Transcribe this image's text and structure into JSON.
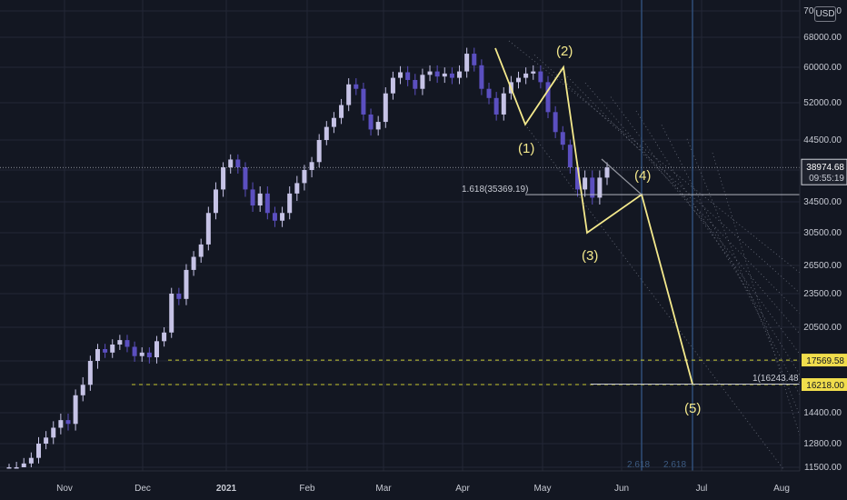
{
  "currency_badge": "USD",
  "chart_data": {
    "type": "candlestick",
    "theme": {
      "background": "#131722",
      "grid": "#232736",
      "candle": "#c6c3e6",
      "candle_dark": "#5b4fc0",
      "wave_line": "#f4e98c",
      "support_line": "#c8c830",
      "fib_time_line": "#2f4f78"
    },
    "y_axis": {
      "scale": "log",
      "ticks": [
        "70000.00",
        "68000.00",
        "60000.00",
        "52000.00",
        "44500.00",
        "38500.00",
        "34500.00",
        "30500.00",
        "26500.00",
        "23500.00",
        "20500.00",
        "17500.00",
        "16218.00",
        "14400.00",
        "12800.00",
        "11500.00"
      ],
      "range": [
        11000,
        72000
      ]
    },
    "x_axis": {
      "ticks": [
        "Nov",
        "Dec",
        "2021",
        "Feb",
        "Mar",
        "Apr",
        "May",
        "Jun",
        "Jul",
        "Aug"
      ],
      "bold_ticks": [
        "2021"
      ]
    },
    "price_close": [
      11400,
      11500,
      11700,
      12000,
      12800,
      13100,
      13600,
      14000,
      13800,
      15500,
      16200,
      17500,
      18500,
      18200,
      18900,
      19300,
      18700,
      17900,
      18200,
      17800,
      19200,
      20000,
      23500,
      23000,
      26000,
      27500,
      29000,
      33000,
      36000,
      39000,
      40500,
      39000,
      36000,
      34000,
      35500,
      33000,
      32000,
      33000,
      35500,
      36800,
      38500,
      40000,
      44500,
      47000,
      48800,
      51500,
      56000,
      55000,
      49500,
      46500,
      48000,
      54000,
      57500,
      58800,
      57000,
      55000,
      58200,
      59000,
      57800,
      58500,
      57500,
      59000,
      63500,
      60500,
      55000,
      53000,
      49500,
      54000,
      56500,
      57500,
      58500,
      59000,
      56500,
      50000,
      46000,
      43500,
      39000,
      36000,
      37500,
      35000,
      37500,
      38974.68
    ],
    "current_price": "38974.68",
    "countdown": "09:55:19",
    "waves": [
      {
        "label": "(1)",
        "price": 47500
      },
      {
        "label": "(2)",
        "price": 60000
      },
      {
        "label": "(3)",
        "price": 30500
      },
      {
        "label": "(4)",
        "price": 35369.19
      },
      {
        "label": "(5)",
        "price": 16243.48
      }
    ],
    "fib_labels": {
      "ext_1618": "1.618(35369.19)",
      "ext_1": "1(16243.48)"
    },
    "fib_time": [
      "2.618",
      "2.618"
    ],
    "price_labels": [
      {
        "value": "17569.58",
        "color": "#f0dd4c"
      },
      {
        "value": "16218.00",
        "color": "#f0dd4c"
      }
    ]
  }
}
